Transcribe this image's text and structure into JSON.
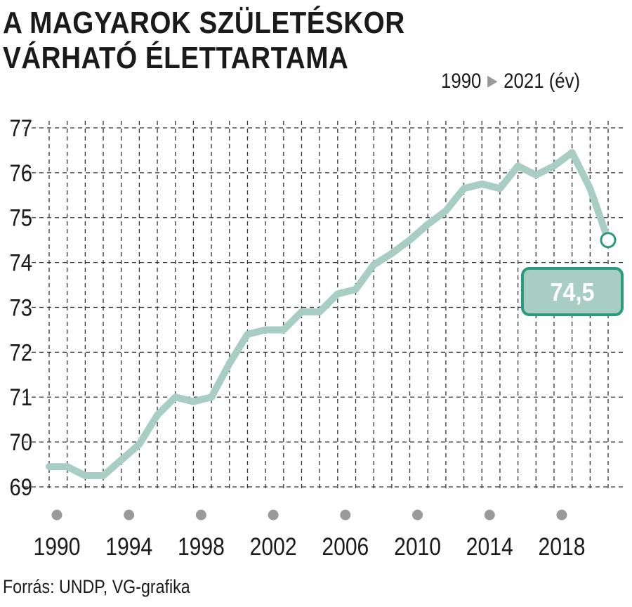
{
  "header": {
    "title_line1": "A MAGYAROK SZÜLETÉSKOR",
    "title_line2": "VÁRHATÓ ÉLETTARTAMA",
    "period_start": "1990",
    "period_arrow": "▶",
    "period_end": "2021 (év)"
  },
  "source": "Forrás: UNDP, VG-grafika",
  "colors": {
    "line": "#a8cec3",
    "callout_bg": "#a8cec3",
    "callout_border": "#2a9a7e",
    "grid": "#333333",
    "tick_dot": "#9a9a9a"
  },
  "chart_data": {
    "type": "line",
    "title": "A MAGYAROK SZÜLETÉSKOR VÁRHATÓ ÉLETTARTAMA",
    "x": [
      1990,
      1991,
      1992,
      1993,
      1994,
      1995,
      1996,
      1997,
      1998,
      1999,
      2000,
      2001,
      2002,
      2003,
      2004,
      2005,
      2006,
      2007,
      2008,
      2009,
      2010,
      2011,
      2012,
      2013,
      2014,
      2015,
      2016,
      2017,
      2018,
      2019,
      2020
    ],
    "series": [
      {
        "values": [
          69.45,
          69.45,
          69.25,
          69.25,
          69.6,
          69.95,
          70.6,
          71.0,
          70.9,
          71.0,
          71.75,
          72.4,
          72.5,
          72.5,
          72.9,
          72.9,
          73.3,
          73.4,
          73.95,
          74.2,
          74.5,
          74.85,
          75.15,
          75.65,
          75.75,
          75.65,
          76.15,
          75.95,
          76.15,
          76.45,
          75.65
        ]
      }
    ],
    "final_point": {
      "x": 2021,
      "y": 74.5
    },
    "callout_label": "74,5",
    "yticks": [
      69,
      70,
      71,
      72,
      73,
      74,
      75,
      76,
      77
    ],
    "ylim": [
      69,
      77
    ],
    "xlim": [
      1990,
      2021
    ],
    "xtick_labels": [
      "1990",
      "1994",
      "1998",
      "2002",
      "2006",
      "2010",
      "2014",
      "2018"
    ],
    "grid": true,
    "xlabel": "",
    "ylabel": ""
  }
}
